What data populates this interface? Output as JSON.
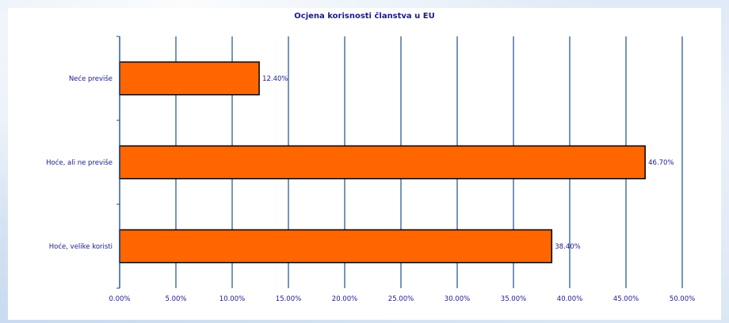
{
  "chart_data": {
    "type": "bar",
    "orientation": "horizontal",
    "title": "Ocjena korisnosti članstva u EU",
    "xlabel": "",
    "ylabel": "",
    "categories": [
      "Neće previše",
      "Hoće, ali ne previše",
      "Hoće, velike koristi"
    ],
    "values": [
      12.4,
      46.7,
      38.4
    ],
    "value_labels": [
      "12.40%",
      "46.70%",
      "38.40%"
    ],
    "xlim": [
      0,
      50
    ],
    "x_ticks": [
      0,
      5,
      10,
      15,
      20,
      25,
      30,
      35,
      40,
      45,
      50
    ],
    "x_tick_labels": [
      "0.00%",
      "5.00%",
      "10.00%",
      "15.00%",
      "20.00%",
      "25.00%",
      "30.00%",
      "35.00%",
      "40.00%",
      "45.00%",
      "50.00%"
    ],
    "grid": true,
    "legend": "none",
    "colors": {
      "bar_fill": "#ff6600",
      "bar_stroke": "#000000",
      "grid": "#1a4f8c",
      "text": "#1a1a8c"
    }
  }
}
